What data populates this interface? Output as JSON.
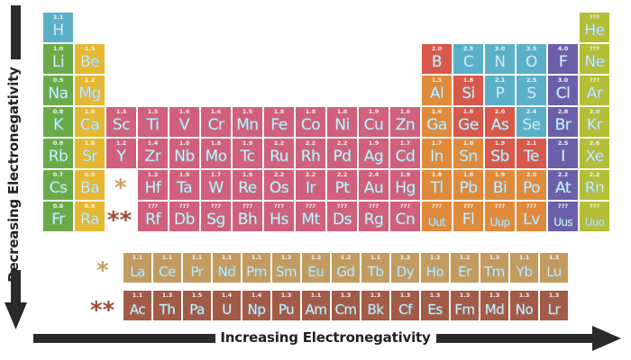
{
  "axes": {
    "vertical_label": "Decreasing Electronegativity",
    "horizontal_label": "Increasing Electronegativity"
  },
  "markers": {
    "lanthanide": "*",
    "actinide": "**"
  },
  "colors": {
    "alkali": "#6aab48",
    "alkaline_earth": "#e6b832",
    "transition": "#d0607b",
    "nonmetal_blue": "#5bb0c8",
    "metalloid_red": "#d8584a",
    "post_transition": "#e08b3b",
    "halogen": "#6b5fa9",
    "noble_gas": "#b5be36",
    "lanthanide": "#c39b5f",
    "actinide": "#a35b48",
    "lanthanide_marker": "#c9a060",
    "actinide_marker": "#9a4b3a"
  },
  "elements": [
    {
      "sym": "H",
      "en": "2.1",
      "row": 1,
      "col": 1,
      "cat": "nonmetal_blue"
    },
    {
      "sym": "He",
      "en": "???",
      "row": 1,
      "col": 18,
      "cat": "noble_gas"
    },
    {
      "sym": "Li",
      "en": "1.0",
      "row": 2,
      "col": 1,
      "cat": "alkali"
    },
    {
      "sym": "Be",
      "en": "1.5",
      "row": 2,
      "col": 2,
      "cat": "alkaline_earth"
    },
    {
      "sym": "B",
      "en": "2.0",
      "row": 2,
      "col": 13,
      "cat": "metalloid_red"
    },
    {
      "sym": "C",
      "en": "2.5",
      "row": 2,
      "col": 14,
      "cat": "nonmetal_blue"
    },
    {
      "sym": "N",
      "en": "3.0",
      "row": 2,
      "col": 15,
      "cat": "nonmetal_blue"
    },
    {
      "sym": "O",
      "en": "3.5",
      "row": 2,
      "col": 16,
      "cat": "nonmetal_blue"
    },
    {
      "sym": "F",
      "en": "4.0",
      "row": 2,
      "col": 17,
      "cat": "halogen"
    },
    {
      "sym": "Ne",
      "en": "???",
      "row": 2,
      "col": 18,
      "cat": "noble_gas"
    },
    {
      "sym": "Na",
      "en": "0.9",
      "row": 3,
      "col": 1,
      "cat": "alkali"
    },
    {
      "sym": "Mg",
      "en": "1.2",
      "row": 3,
      "col": 2,
      "cat": "alkaline_earth"
    },
    {
      "sym": "Al",
      "en": "1.5",
      "row": 3,
      "col": 13,
      "cat": "post_transition"
    },
    {
      "sym": "Si",
      "en": "1.8",
      "row": 3,
      "col": 14,
      "cat": "metalloid_red"
    },
    {
      "sym": "P",
      "en": "2.1",
      "row": 3,
      "col": 15,
      "cat": "nonmetal_blue"
    },
    {
      "sym": "S",
      "en": "2.5",
      "row": 3,
      "col": 16,
      "cat": "nonmetal_blue"
    },
    {
      "sym": "Cl",
      "en": "3.0",
      "row": 3,
      "col": 17,
      "cat": "halogen"
    },
    {
      "sym": "Ar",
      "en": "???",
      "row": 3,
      "col": 18,
      "cat": "noble_gas"
    },
    {
      "sym": "K",
      "en": "0.8",
      "row": 4,
      "col": 1,
      "cat": "alkali"
    },
    {
      "sym": "Ca",
      "en": "1.0",
      "row": 4,
      "col": 2,
      "cat": "alkaline_earth"
    },
    {
      "sym": "Sc",
      "en": "1.3",
      "row": 4,
      "col": 3,
      "cat": "transition"
    },
    {
      "sym": "Ti",
      "en": "1.5",
      "row": 4,
      "col": 4,
      "cat": "transition"
    },
    {
      "sym": "V",
      "en": "1.6",
      "row": 4,
      "col": 5,
      "cat": "transition"
    },
    {
      "sym": "Cr",
      "en": "1.6",
      "row": 4,
      "col": 6,
      "cat": "transition"
    },
    {
      "sym": "Mn",
      "en": "1.5",
      "row": 4,
      "col": 7,
      "cat": "transition"
    },
    {
      "sym": "Fe",
      "en": "1.8",
      "row": 4,
      "col": 8,
      "cat": "transition"
    },
    {
      "sym": "Co",
      "en": "1.8",
      "row": 4,
      "col": 9,
      "cat": "transition"
    },
    {
      "sym": "Ni",
      "en": "1.8",
      "row": 4,
      "col": 10,
      "cat": "transition"
    },
    {
      "sym": "Cu",
      "en": "1.9",
      "row": 4,
      "col": 11,
      "cat": "transition"
    },
    {
      "sym": "Zn",
      "en": "1.6",
      "row": 4,
      "col": 12,
      "cat": "transition"
    },
    {
      "sym": "Ga",
      "en": "1.6",
      "row": 4,
      "col": 13,
      "cat": "post_transition"
    },
    {
      "sym": "Ge",
      "en": "1.8",
      "row": 4,
      "col": 14,
      "cat": "metalloid_red"
    },
    {
      "sym": "As",
      "en": "2.0",
      "row": 4,
      "col": 15,
      "cat": "metalloid_red"
    },
    {
      "sym": "Se",
      "en": "2.4",
      "row": 4,
      "col": 16,
      "cat": "nonmetal_blue"
    },
    {
      "sym": "Br",
      "en": "2.8",
      "row": 4,
      "col": 17,
      "cat": "halogen"
    },
    {
      "sym": "Kr",
      "en": "3.0",
      "row": 4,
      "col": 18,
      "cat": "noble_gas"
    },
    {
      "sym": "Rb",
      "en": "0.8",
      "row": 5,
      "col": 1,
      "cat": "alkali"
    },
    {
      "sym": "Sr",
      "en": "1.0",
      "row": 5,
      "col": 2,
      "cat": "alkaline_earth"
    },
    {
      "sym": "Y",
      "en": "1.2",
      "row": 5,
      "col": 3,
      "cat": "transition"
    },
    {
      "sym": "Zr",
      "en": "1.4",
      "row": 5,
      "col": 4,
      "cat": "transition"
    },
    {
      "sym": "Nb",
      "en": "1.6",
      "row": 5,
      "col": 5,
      "cat": "transition"
    },
    {
      "sym": "Mo",
      "en": "1.8",
      "row": 5,
      "col": 6,
      "cat": "transition"
    },
    {
      "sym": "Tc",
      "en": "1.9",
      "row": 5,
      "col": 7,
      "cat": "transition"
    },
    {
      "sym": "Ru",
      "en": "2.2",
      "row": 5,
      "col": 8,
      "cat": "transition"
    },
    {
      "sym": "Rh",
      "en": "2.2",
      "row": 5,
      "col": 9,
      "cat": "transition"
    },
    {
      "sym": "Pd",
      "en": "2.2",
      "row": 5,
      "col": 10,
      "cat": "transition"
    },
    {
      "sym": "Ag",
      "en": "1.9",
      "row": 5,
      "col": 11,
      "cat": "transition"
    },
    {
      "sym": "Cd",
      "en": "1.7",
      "row": 5,
      "col": 12,
      "cat": "transition"
    },
    {
      "sym": "In",
      "en": "1.7",
      "row": 5,
      "col": 13,
      "cat": "post_transition"
    },
    {
      "sym": "Sn",
      "en": "1.8",
      "row": 5,
      "col": 14,
      "cat": "post_transition"
    },
    {
      "sym": "Sb",
      "en": "1.9",
      "row": 5,
      "col": 15,
      "cat": "metalloid_red"
    },
    {
      "sym": "Te",
      "en": "2.1",
      "row": 5,
      "col": 16,
      "cat": "metalloid_red"
    },
    {
      "sym": "I",
      "en": "2.5",
      "row": 5,
      "col": 17,
      "cat": "halogen"
    },
    {
      "sym": "Xe",
      "en": "2.6",
      "row": 5,
      "col": 18,
      "cat": "noble_gas"
    },
    {
      "sym": "Cs",
      "en": "0.7",
      "row": 6,
      "col": 1,
      "cat": "alkali"
    },
    {
      "sym": "Ba",
      "en": "0.9",
      "row": 6,
      "col": 2,
      "cat": "alkaline_earth"
    },
    {
      "sym": "Hf",
      "en": "1.3",
      "row": 6,
      "col": 4,
      "cat": "transition"
    },
    {
      "sym": "Ta",
      "en": "1.5",
      "row": 6,
      "col": 5,
      "cat": "transition"
    },
    {
      "sym": "W",
      "en": "1.7",
      "row": 6,
      "col": 6,
      "cat": "transition"
    },
    {
      "sym": "Re",
      "en": "1.9",
      "row": 6,
      "col": 7,
      "cat": "transition"
    },
    {
      "sym": "Os",
      "en": "2.2",
      "row": 6,
      "col": 8,
      "cat": "transition"
    },
    {
      "sym": "Ir",
      "en": "2.2",
      "row": 6,
      "col": 9,
      "cat": "transition"
    },
    {
      "sym": "Pt",
      "en": "2.2",
      "row": 6,
      "col": 10,
      "cat": "transition"
    },
    {
      "sym": "Au",
      "en": "2.4",
      "row": 6,
      "col": 11,
      "cat": "transition"
    },
    {
      "sym": "Hg",
      "en": "1.9",
      "row": 6,
      "col": 12,
      "cat": "transition"
    },
    {
      "sym": "Tl",
      "en": "1.8",
      "row": 6,
      "col": 13,
      "cat": "post_transition"
    },
    {
      "sym": "Pb",
      "en": "1.8",
      "row": 6,
      "col": 14,
      "cat": "post_transition"
    },
    {
      "sym": "Bi",
      "en": "1.9",
      "row": 6,
      "col": 15,
      "cat": "post_transition"
    },
    {
      "sym": "Po",
      "en": "2.0",
      "row": 6,
      "col": 16,
      "cat": "post_transition"
    },
    {
      "sym": "At",
      "en": "2.2",
      "row": 6,
      "col": 17,
      "cat": "halogen"
    },
    {
      "sym": "Rn",
      "en": "2.2",
      "row": 6,
      "col": 18,
      "cat": "noble_gas"
    },
    {
      "sym": "Fr",
      "en": "0.8",
      "row": 7,
      "col": 1,
      "cat": "alkali"
    },
    {
      "sym": "Ra",
      "en": "0.9",
      "row": 7,
      "col": 2,
      "cat": "alkaline_earth"
    },
    {
      "sym": "Rf",
      "en": "???",
      "row": 7,
      "col": 4,
      "cat": "transition"
    },
    {
      "sym": "Db",
      "en": "???",
      "row": 7,
      "col": 5,
      "cat": "transition"
    },
    {
      "sym": "Sg",
      "en": "???",
      "row": 7,
      "col": 6,
      "cat": "transition"
    },
    {
      "sym": "Bh",
      "en": "???",
      "row": 7,
      "col": 7,
      "cat": "transition"
    },
    {
      "sym": "Hs",
      "en": "???",
      "row": 7,
      "col": 8,
      "cat": "transition"
    },
    {
      "sym": "Mt",
      "en": "???",
      "row": 7,
      "col": 9,
      "cat": "transition"
    },
    {
      "sym": "Ds",
      "en": "???",
      "row": 7,
      "col": 10,
      "cat": "transition"
    },
    {
      "sym": "Rg",
      "en": "???",
      "row": 7,
      "col": 11,
      "cat": "transition"
    },
    {
      "sym": "Cn",
      "en": "???",
      "row": 7,
      "col": 12,
      "cat": "transition"
    },
    {
      "sym": "Uut",
      "en": "???",
      "row": 7,
      "col": 13,
      "cat": "post_transition"
    },
    {
      "sym": "Fl",
      "en": "???",
      "row": 7,
      "col": 14,
      "cat": "post_transition"
    },
    {
      "sym": "Uup",
      "en": "???",
      "row": 7,
      "col": 15,
      "cat": "post_transition"
    },
    {
      "sym": "Lv",
      "en": "???",
      "row": 7,
      "col": 16,
      "cat": "post_transition"
    },
    {
      "sym": "Uus",
      "en": "???",
      "row": 7,
      "col": 17,
      "cat": "halogen"
    },
    {
      "sym": "Uuo",
      "en": "???",
      "row": 7,
      "col": 18,
      "cat": "noble_gas"
    }
  ],
  "lanthanides": [
    {
      "sym": "La",
      "en": "1.1"
    },
    {
      "sym": "Ce",
      "en": "1.1"
    },
    {
      "sym": "Pr",
      "en": "1.1"
    },
    {
      "sym": "Nd",
      "en": "1.1"
    },
    {
      "sym": "Pm",
      "en": "1.1"
    },
    {
      "sym": "Sm",
      "en": "1.2"
    },
    {
      "sym": "Eu",
      "en": "1.2"
    },
    {
      "sym": "Gd",
      "en": "1.2"
    },
    {
      "sym": "Tb",
      "en": "1.1"
    },
    {
      "sym": "Dy",
      "en": "1.2"
    },
    {
      "sym": "Ho",
      "en": "1.2"
    },
    {
      "sym": "Er",
      "en": "1.2"
    },
    {
      "sym": "Tm",
      "en": "1.3"
    },
    {
      "sym": "Yb",
      "en": "1.1"
    },
    {
      "sym": "Lu",
      "en": "1.3"
    }
  ],
  "actinides": [
    {
      "sym": "Ac",
      "en": "1.1"
    },
    {
      "sym": "Th",
      "en": "1.3"
    },
    {
      "sym": "Pa",
      "en": "1.5"
    },
    {
      "sym": "U",
      "en": "1.4"
    },
    {
      "sym": "Np",
      "en": "1.4"
    },
    {
      "sym": "Pu",
      "en": "1.3"
    },
    {
      "sym": "Am",
      "en": "1.1"
    },
    {
      "sym": "Cm",
      "en": "1.3"
    },
    {
      "sym": "Bk",
      "en": "1.3"
    },
    {
      "sym": "Cf",
      "en": "1.3"
    },
    {
      "sym": "Es",
      "en": "1.3"
    },
    {
      "sym": "Fm",
      "en": "1.3"
    },
    {
      "sym": "Md",
      "en": "1.3"
    },
    {
      "sym": "No",
      "en": "1.3"
    },
    {
      "sym": "Lr",
      "en": "1.3"
    }
  ]
}
